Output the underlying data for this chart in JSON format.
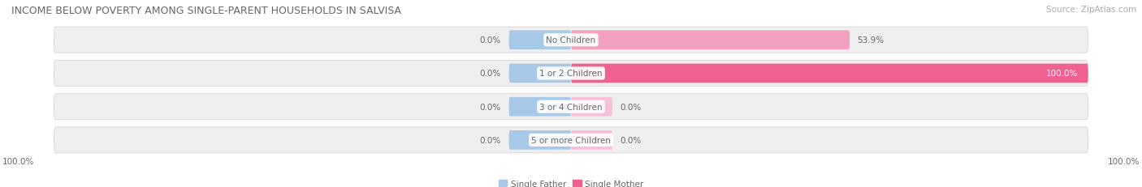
{
  "title": "INCOME BELOW POVERTY AMONG SINGLE-PARENT HOUSEHOLDS IN SALVISA",
  "source": "Source: ZipAtlas.com",
  "categories": [
    "No Children",
    "1 or 2 Children",
    "3 or 4 Children",
    "5 or more Children"
  ],
  "single_father": [
    0.0,
    0.0,
    0.0,
    0.0
  ],
  "single_mother": [
    53.9,
    100.0,
    0.0,
    0.0
  ],
  "father_color": "#a8c8e8",
  "mother_color_full": "#f06090",
  "mother_color_partial": "#f4a0c0",
  "mother_color_stub": "#f8c0d8",
  "bar_bg_color": "#efefef",
  "bar_edge_color": "#dddddd",
  "title_color": "#666666",
  "label_color": "#666666",
  "source_color": "#aaaaaa",
  "legend_father": "Single Father",
  "legend_mother": "Single Mother",
  "bottom_left_label": "100.0%",
  "bottom_right_label": "100.0%",
  "title_fontsize": 9,
  "label_fontsize": 7.5,
  "category_fontsize": 7.5,
  "source_fontsize": 7.5,
  "legend_fontsize": 7.5
}
